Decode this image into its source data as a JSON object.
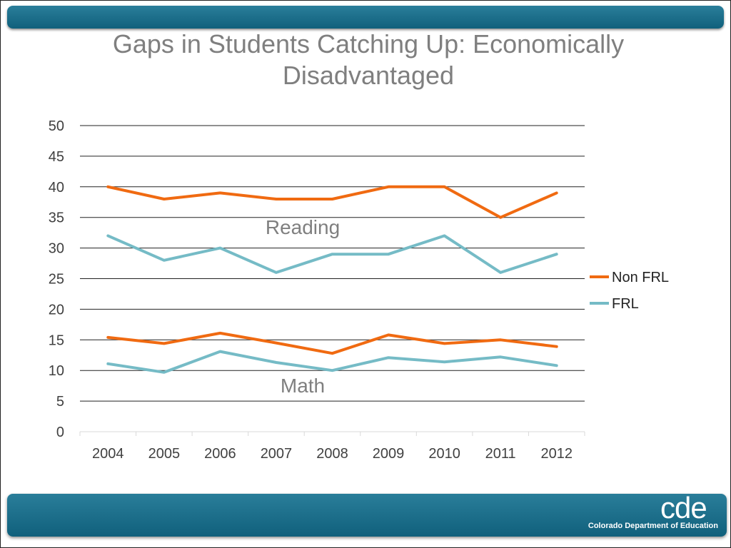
{
  "slide": {
    "title_line1": "Gaps in Students Catching Up: Economically",
    "title_line2": "Disadvantaged",
    "logo_text": "cde",
    "org_name": "Colorado Department of Education",
    "colors": {
      "bar": "#1a6e8b",
      "non_frl": "#f06a11",
      "frl": "#75bbc6",
      "title": "#7f7f7f"
    }
  },
  "chart_data": {
    "type": "line",
    "categories": [
      "2004",
      "2005",
      "2006",
      "2007",
      "2008",
      "2009",
      "2010",
      "2011",
      "2012"
    ],
    "ylim": [
      0,
      50
    ],
    "yticks": [
      "0",
      "5",
      "10",
      "15",
      "20",
      "25",
      "30",
      "35",
      "40",
      "45",
      "50"
    ],
    "grid": true,
    "legend": "right",
    "series": [
      {
        "name": "Non FRL",
        "group": "Reading",
        "color": "#f06a11",
        "values": [
          40,
          38,
          39,
          38,
          38,
          40,
          40,
          35,
          39
        ]
      },
      {
        "name": "FRL",
        "group": "Reading",
        "color": "#75bbc6",
        "values": [
          32,
          28,
          30,
          26,
          29,
          29,
          32,
          26,
          29
        ]
      },
      {
        "name": "Non FRL",
        "group": "Math",
        "color": "#f06a11",
        "values": [
          15.4,
          14.4,
          16.1,
          14.5,
          12.8,
          15.8,
          14.4,
          15.0,
          13.9
        ]
      },
      {
        "name": "FRL",
        "group": "Math",
        "color": "#75bbc6",
        "values": [
          11.1,
          9.7,
          13.1,
          11.3,
          10.0,
          12.1,
          11.4,
          12.2,
          10.8
        ]
      }
    ],
    "legend_entries": [
      {
        "name": "Non FRL",
        "color": "#f06a11"
      },
      {
        "name": "FRL",
        "color": "#75bbc6"
      }
    ],
    "annotations": [
      "Reading",
      "Math"
    ]
  }
}
